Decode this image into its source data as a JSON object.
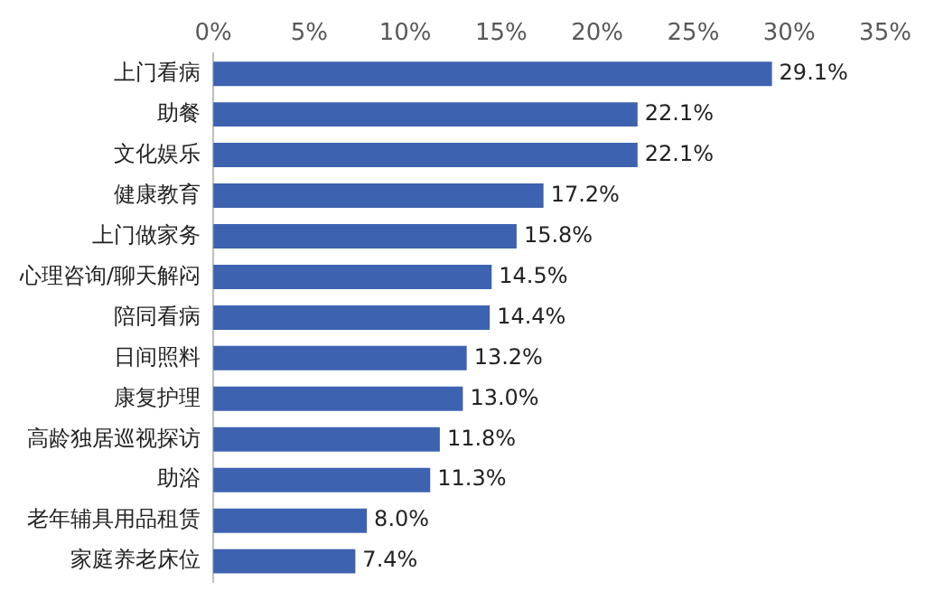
{
  "chart_data": {
    "type": "bar",
    "orientation": "horizontal",
    "categories": [
      "上门看病",
      "助餐",
      "文化娱乐",
      "健康教育",
      "上门做家务",
      "心理咨询/聊天解闷",
      "陪同看病",
      "日间照料",
      "康复护理",
      "高龄独居巡视探访",
      "助浴",
      "老年辅具用品租赁",
      "家庭养老床位"
    ],
    "values": [
      29.1,
      22.1,
      22.1,
      17.2,
      15.8,
      14.5,
      14.4,
      13.2,
      13.0,
      11.8,
      11.3,
      8.0,
      7.4
    ],
    "value_labels": [
      "29.1%",
      "22.1%",
      "22.1%",
      "17.2%",
      "15.8%",
      "14.5%",
      "14.4%",
      "13.2%",
      "13.0%",
      "11.8%",
      "11.3%",
      "8.0%",
      "7.4%"
    ],
    "color": "#3d62b0",
    "xlim": [
      0,
      35
    ],
    "xticks": [
      {
        "value": 0,
        "label": "0%"
      },
      {
        "value": 5,
        "label": "5%"
      },
      {
        "value": 10,
        "label": "10%"
      },
      {
        "value": 15,
        "label": "15%"
      },
      {
        "value": 20,
        "label": "20%"
      },
      {
        "value": 25,
        "label": "25%"
      },
      {
        "value": 30,
        "label": "30%"
      },
      {
        "value": 35,
        "label": "35%"
      }
    ],
    "grid": false,
    "legend": false
  }
}
